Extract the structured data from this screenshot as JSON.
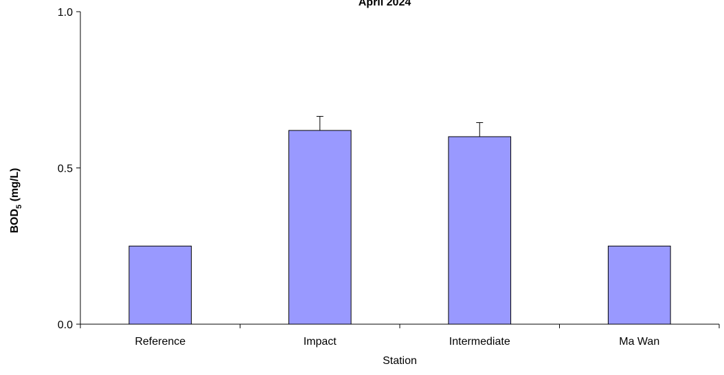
{
  "chart_data": {
    "type": "bar",
    "title": "April 2024",
    "xlabel": "Station",
    "ylabel_main": "BOD",
    "ylabel_sub": "5",
    "ylabel_rest": " (mg/L)",
    "ylim": [
      0,
      1.0
    ],
    "yticks": [
      "0.0",
      "0.5",
      "1.0"
    ],
    "ytick_values": [
      0,
      0.5,
      1.0
    ],
    "categories": [
      "Reference",
      "Impact",
      "Intermediate",
      "Ma Wan"
    ],
    "values": [
      0.25,
      0.62,
      0.6,
      0.25
    ],
    "errors": [
      0,
      0.045,
      0.045,
      0
    ],
    "bar_color": "#9999ff",
    "grid": false,
    "legend": "none"
  }
}
